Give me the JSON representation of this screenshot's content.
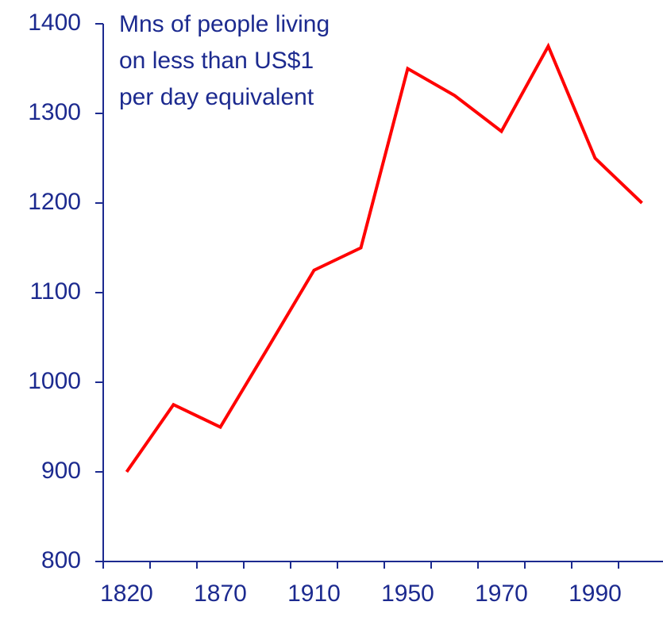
{
  "chart_data": {
    "type": "line",
    "title": [
      "Mns of people living",
      "on less than US$1",
      "per day equivalent"
    ],
    "categories": [
      "1820",
      null,
      "1870",
      null,
      "1910",
      null,
      "1950",
      null,
      "1970",
      null,
      "1990",
      null
    ],
    "series": [
      {
        "color": "#ff0000",
        "values": [
          900,
          975,
          950,
          1037,
          1125,
          1150,
          1350,
          1320,
          1280,
          1375,
          1250,
          1200
        ]
      }
    ],
    "ylim": [
      800,
      1400
    ],
    "yticks": [
      800,
      900,
      1000,
      1100,
      1200,
      1300,
      1400
    ]
  }
}
